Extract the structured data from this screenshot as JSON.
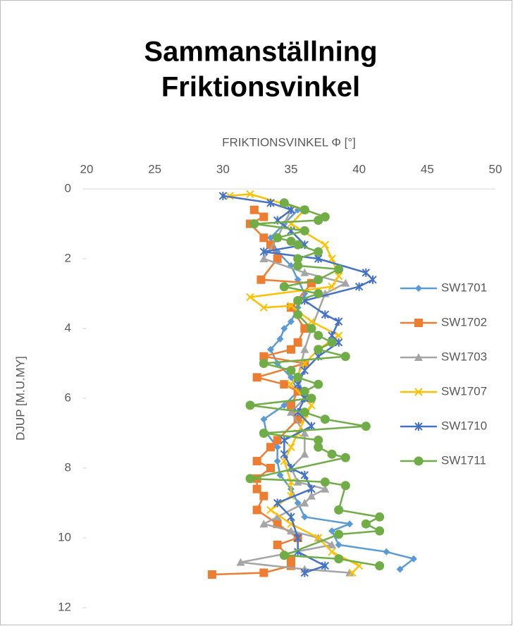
{
  "chart_data": {
    "type": "line",
    "title": [
      "Sammanställning",
      "Friktionsvinkel"
    ],
    "x_label": "FRIKTIONSVINKEL Φ [°]",
    "y_label": "DJUP [M.U.MY]",
    "xlim": [
      20,
      50
    ],
    "xticks": [
      20,
      25,
      30,
      35,
      40,
      45,
      50
    ],
    "x_axis_position": "top",
    "ylim": [
      0,
      12
    ],
    "yticks": [
      0,
      2,
      4,
      6,
      8,
      10,
      12
    ],
    "y_inverted": true,
    "legend": "right",
    "series": [
      {
        "name": "SW1701",
        "color": "#5b9bd5",
        "marker": "diamond",
        "x": [
          35.5,
          34.5,
          33.5,
          34,
          35,
          35.5,
          36,
          35.5,
          35,
          34.5,
          34.2,
          33.5,
          34,
          35,
          35.5,
          34.5,
          33,
          33.2,
          34,
          34,
          34.2,
          35,
          35.5,
          36,
          39.3,
          38,
          38.5,
          42,
          44,
          43
        ],
        "y": [
          0.6,
          1.0,
          1.4,
          1.8,
          2.2,
          2.6,
          3.0,
          3.4,
          3.8,
          4.0,
          4.3,
          4.6,
          5.0,
          5.4,
          5.8,
          6.2,
          6.6,
          7.0,
          7.4,
          7.8,
          8.2,
          8.6,
          9.0,
          9.4,
          9.6,
          9.8,
          10.2,
          10.4,
          10.6,
          10.9
        ]
      },
      {
        "name": "SW1702",
        "color": "#ed7d31",
        "marker": "square",
        "x": [
          32.3,
          33,
          32,
          33,
          33.5,
          34,
          32.8,
          36.5,
          35,
          36,
          35.5,
          35,
          33,
          36,
          32.5,
          34.5,
          35.5,
          35,
          35.5,
          34,
          33.5,
          32.5,
          33.5,
          32.5,
          32.5,
          33,
          32.5,
          34,
          35.5,
          34,
          35,
          35,
          33,
          29.2
        ],
        "y": [
          0.6,
          0.8,
          1.0,
          1.4,
          1.6,
          2.0,
          2.6,
          2.7,
          3.4,
          4.0,
          4.4,
          4.6,
          4.8,
          5.0,
          5.4,
          5.6,
          5.8,
          6.2,
          6.6,
          7.2,
          7.4,
          7.8,
          8.0,
          8.3,
          8.6,
          8.8,
          9.2,
          9.6,
          10.0,
          10.2,
          10.6,
          10.8,
          11.0,
          11.05
        ]
      },
      {
        "name": "SW1703",
        "color": "#a5a5a5",
        "marker": "triangle",
        "x": [
          35,
          34,
          33,
          36,
          39,
          37.5,
          36.5,
          36,
          35.5,
          36,
          35,
          36,
          36,
          35,
          35.5,
          37.5,
          36.5,
          36,
          34,
          33,
          35,
          37,
          38,
          31.3,
          36,
          39.3
        ],
        "y": [
          0.6,
          1.4,
          2.0,
          2.4,
          2.7,
          3.0,
          4.0,
          4.6,
          5.4,
          6.0,
          6.4,
          7.0,
          7.6,
          8.0,
          8.4,
          8.6,
          8.8,
          9.0,
          9.4,
          9.6,
          9.8,
          10.0,
          10.2,
          10.7,
          10.9,
          11.0
        ]
      },
      {
        "name": "SW1707",
        "color": "#ffc000",
        "marker": "x",
        "x": [
          30.5,
          32,
          36,
          35,
          37.5,
          38,
          38.5,
          38,
          32,
          33,
          35,
          36.5,
          38.5,
          37,
          36,
          35,
          36.5,
          36,
          35.5,
          35,
          34.5,
          35,
          35,
          33.5,
          35,
          37,
          38,
          40,
          39.5
        ],
        "y": [
          0.2,
          0.15,
          0.6,
          1.0,
          1.6,
          2.0,
          2.5,
          2.8,
          3.1,
          3.4,
          3.35,
          3.8,
          4.2,
          4.6,
          5.0,
          5.6,
          6.2,
          6.6,
          7.0,
          7.4,
          7.8,
          8.4,
          8.8,
          9.2,
          9.6,
          10.0,
          10.4,
          10.8,
          11.0
        ]
      },
      {
        "name": "SW1710",
        "color": "#4472c4",
        "marker": "star",
        "x": [
          30,
          33.5,
          35,
          34,
          35,
          36,
          33,
          37,
          40.5,
          41,
          40,
          36,
          37.5,
          38.5,
          38,
          38.5,
          37,
          36,
          35.5,
          36,
          35.5,
          36.5,
          34.5,
          34.5,
          35,
          36,
          36.5,
          34,
          35,
          35.5,
          35.5,
          37.5,
          36
        ],
        "y": [
          0.2,
          0.4,
          0.6,
          0.9,
          1.2,
          1.6,
          1.8,
          2.0,
          2.4,
          2.6,
          2.8,
          3.2,
          3.6,
          3.8,
          4.2,
          4.4,
          4.8,
          5.2,
          5.6,
          6.0,
          6.4,
          6.8,
          7.2,
          7.6,
          8.0,
          8.2,
          8.6,
          9.0,
          9.4,
          10.0,
          10.4,
          10.8,
          11.0
        ]
      },
      {
        "name": "SW1711",
        "color": "#70ad47",
        "marker": "circle",
        "x": [
          34.5,
          36,
          37.5,
          37,
          32.3,
          36,
          34,
          35,
          35.5,
          37,
          35.5,
          35.5,
          38.5,
          37,
          34.5,
          37,
          35.5,
          35.5,
          36.5,
          37,
          38,
          37,
          39,
          33,
          35,
          35.5,
          37,
          36,
          36.5,
          32,
          36,
          37.5,
          40.5,
          33,
          37,
          37,
          38,
          39,
          32,
          37.5,
          39,
          38.5,
          41.5,
          40.5,
          41.5,
          38.5,
          34.5,
          38.5,
          41.5
        ],
        "y": [
          0.4,
          0.6,
          0.8,
          0.9,
          1.0,
          1.2,
          1.4,
          1.5,
          1.6,
          1.8,
          2.0,
          2.2,
          2.3,
          2.6,
          2.8,
          3.0,
          3.2,
          3.6,
          4.0,
          4.2,
          4.4,
          4.6,
          4.8,
          5.0,
          5.2,
          5.4,
          5.6,
          5.8,
          6.0,
          6.2,
          6.4,
          6.6,
          6.8,
          7.0,
          7.2,
          7.4,
          7.6,
          7.7,
          8.3,
          8.4,
          8.5,
          9.2,
          9.4,
          9.6,
          9.8,
          9.9,
          10.5,
          10.6,
          10.8
        ]
      }
    ]
  }
}
